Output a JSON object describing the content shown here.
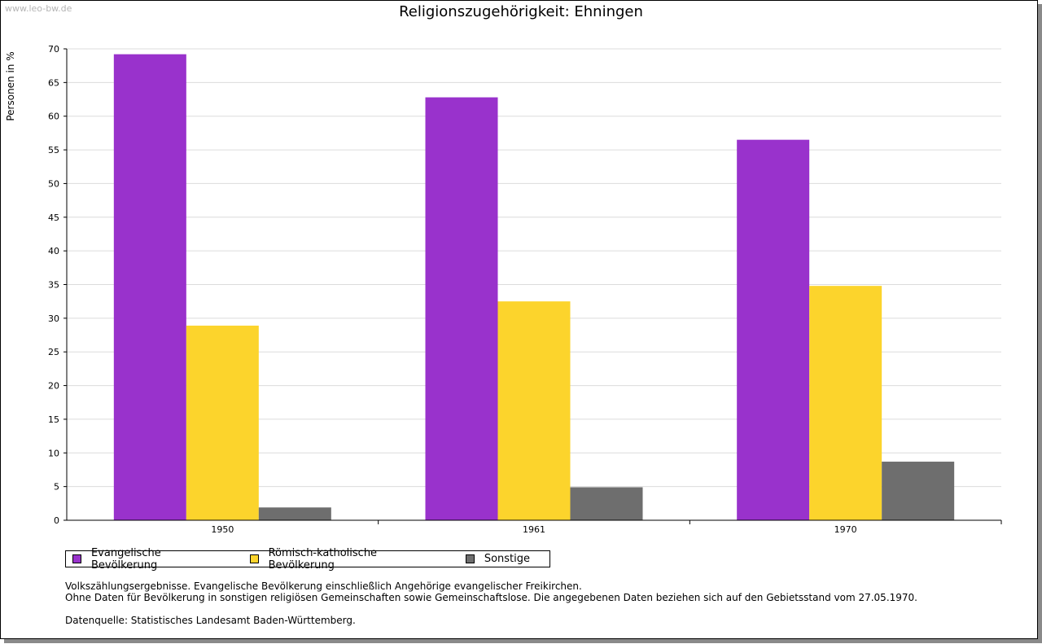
{
  "watermark": "www.leo-bw.de",
  "chart_data": {
    "type": "bar",
    "title": "Religionszugehörigkeit: Ehningen",
    "xlabel": "",
    "ylabel": "Personen in %",
    "ylim": [
      0,
      70
    ],
    "yticks": [
      0,
      5,
      10,
      15,
      20,
      25,
      30,
      35,
      40,
      45,
      50,
      55,
      60,
      65,
      70
    ],
    "categories": [
      "1950",
      "1961",
      "1970"
    ],
    "series": [
      {
        "name": "Evangelische Bevölkerung",
        "color": "#9932cc",
        "values": [
          69.2,
          62.8,
          56.5
        ]
      },
      {
        "name": "Römisch-katholische Bevölkerung",
        "color": "#fcd42c",
        "values": [
          28.9,
          32.5,
          34.8
        ]
      },
      {
        "name": "Sonstige",
        "color": "#6e6e6e",
        "values": [
          1.9,
          4.9,
          8.7
        ]
      }
    ],
    "grid": true,
    "legend_position": "bottom-left"
  },
  "notes": {
    "line1": "Volkszählungsergebnisse. Evangelische Bevölkerung einschließlich Angehörige evangelischer Freikirchen.",
    "line2": "Ohne Daten für Bevölkerung in sonstigen religiösen Gemeinschaften sowie Gemeinschaftslose. Die angegebenen Daten beziehen sich auf den Gebietsstand vom 27.05.1970.",
    "source": "Datenquelle: Statistisches Landesamt Baden-Württemberg."
  }
}
